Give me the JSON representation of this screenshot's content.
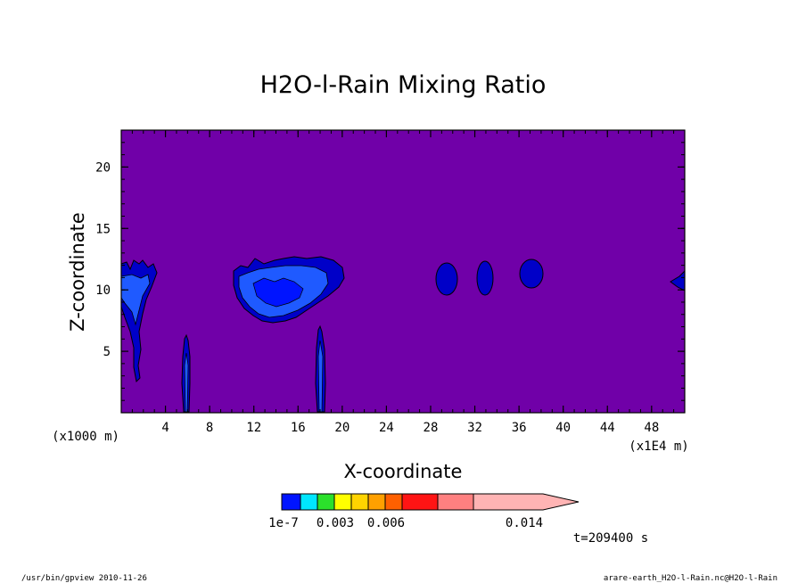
{
  "chart_data": {
    "type": "heatmap",
    "title": "H2O-l-Rain Mixing Ratio",
    "xlabel": "X-coordinate",
    "ylabel": "Z-coordinate",
    "x_unit_note": "(x1E4 m)",
    "y_unit_note": "(x1000 m)",
    "xlim": [
      0,
      51
    ],
    "ylim": [
      0,
      23
    ],
    "x_ticks": [
      4,
      8,
      12,
      16,
      20,
      24,
      28,
      32,
      36,
      40,
      44,
      48
    ],
    "y_ticks": [
      5,
      10,
      15,
      20
    ],
    "background_color": "#7000a8",
    "colorbar": {
      "colors": [
        "#0014ff",
        "#00e6ff",
        "#2be02b",
        "#ffff00",
        "#ffd400",
        "#ffa000",
        "#ff6000",
        "#ff1414",
        "#ff8080",
        "#ffb4b4"
      ],
      "labels": [
        "1e-7",
        "0.003",
        "0.006",
        "0.014"
      ]
    },
    "time_label": "t=209400 s"
  },
  "footer": {
    "left": "/usr/bin/gpview  2010-11-26",
    "right": "arare-earth_H2O-l-Rain.nc@H2O-l-Rain"
  }
}
